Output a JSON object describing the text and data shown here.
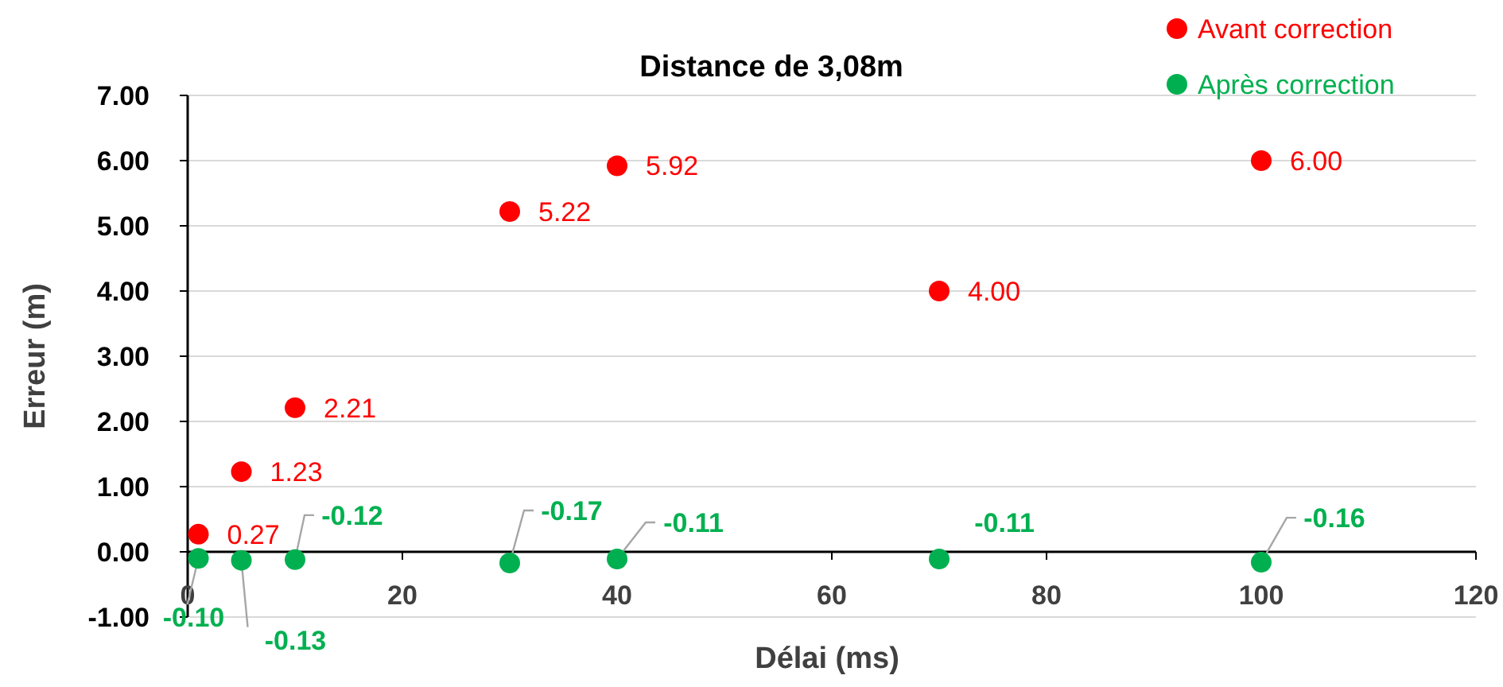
{
  "chart_data": {
    "type": "scatter",
    "title": "Distance de 3,08m",
    "xlabel": "Délai (ms)",
    "ylabel": "Erreur (m)",
    "x": [
      1,
      5,
      10,
      30,
      40,
      70,
      100
    ],
    "series": [
      {
        "name": "Avant correction",
        "color": "#ff0000",
        "values": [
          0.27,
          1.23,
          2.21,
          5.22,
          5.92,
          4.0,
          6.0
        ],
        "value_labels": [
          "0.27",
          "1.23",
          "2.21",
          "5.22",
          "5.92",
          "4.00",
          "6.00"
        ]
      },
      {
        "name": "Après correction",
        "color": "#00b050",
        "values": [
          -0.1,
          -0.13,
          -0.12,
          -0.17,
          -0.11,
          -0.11,
          -0.16
        ],
        "value_labels": [
          "-0.10",
          "-0.13",
          "-0.12",
          "-0.17",
          "-0.11",
          "-0.11",
          "-0.16"
        ]
      }
    ],
    "xlim": [
      0,
      120
    ],
    "xticks": [
      0,
      20,
      40,
      60,
      80,
      100,
      120
    ],
    "ylim": [
      -1,
      7
    ],
    "yticks": [
      {
        "value": -1,
        "label": "-1.00"
      },
      {
        "value": 0,
        "label": "0.00"
      },
      {
        "value": 1,
        "label": "1.00"
      },
      {
        "value": 2,
        "label": "2.00"
      },
      {
        "value": 3,
        "label": "3.00"
      },
      {
        "value": 4,
        "label": "4.00"
      },
      {
        "value": 5,
        "label": "5.00"
      },
      {
        "value": 6,
        "label": "6.00"
      },
      {
        "value": 7,
        "label": "7.00"
      }
    ],
    "grid": "y",
    "legend": "top right",
    "marker": "circle"
  }
}
